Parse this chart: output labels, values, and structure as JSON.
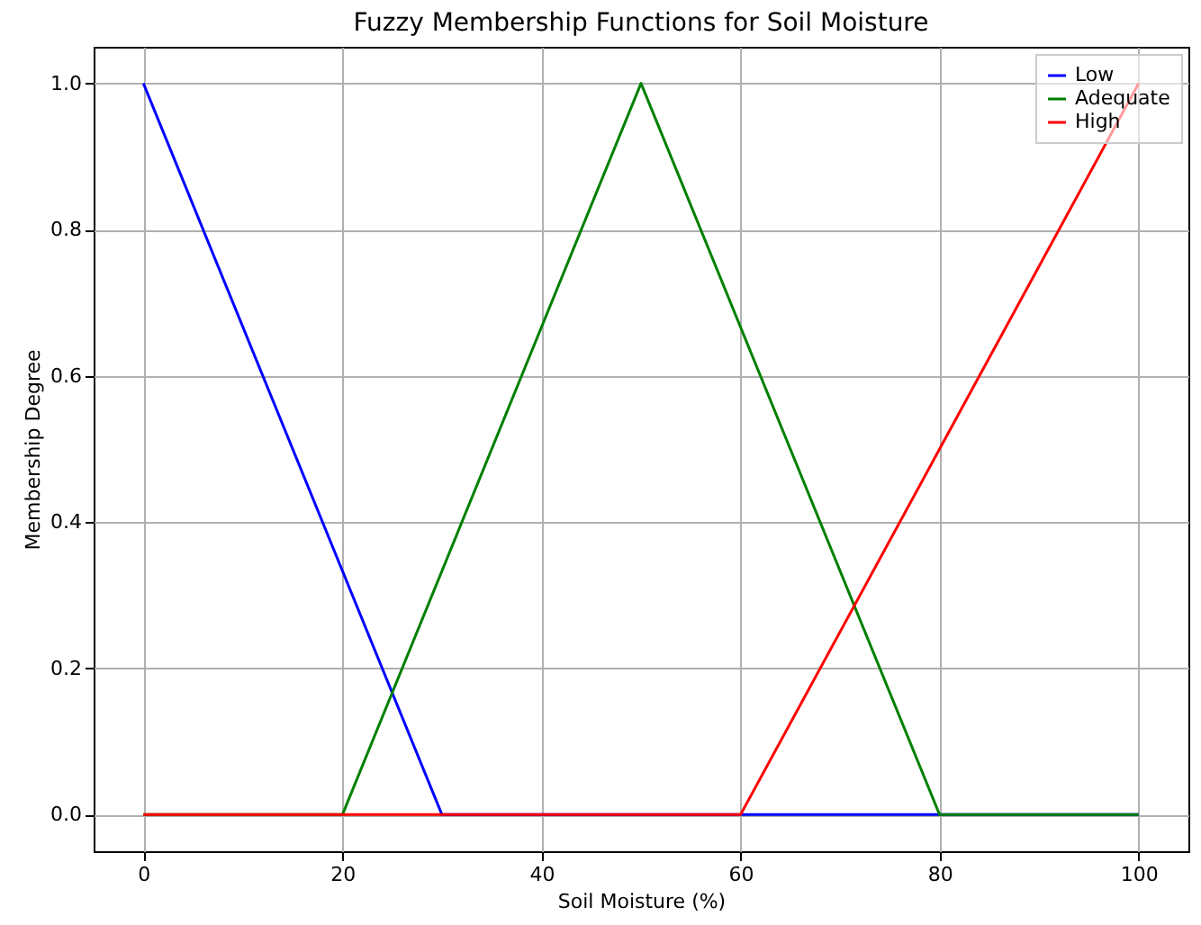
{
  "chart_data": {
    "type": "line",
    "title": "Fuzzy Membership Functions for Soil Moisture",
    "xlabel": "Soil Moisture (%)",
    "ylabel": "Membership Degree",
    "xlim": [
      -5,
      105
    ],
    "xticks": [
      0,
      20,
      40,
      60,
      80,
      100
    ],
    "ylim": [
      -0.05,
      1.05
    ],
    "yticks": [
      {
        "value": 0,
        "label": "0.0"
      },
      0.2,
      0.4,
      0.6,
      0.8,
      {
        "value": 1,
        "label": "1.0"
      }
    ],
    "grid": true,
    "legend": "top right",
    "marker": "none",
    "line_style": "solid",
    "series": [
      {
        "name": "Low",
        "color": "#0000ff",
        "x": [
          0,
          30,
          100
        ],
        "values": [
          1,
          0,
          0
        ]
      },
      {
        "name": "Adequate",
        "color": "#008000",
        "x": [
          0,
          20,
          50,
          80,
          100
        ],
        "values": [
          0,
          0,
          1,
          0,
          0
        ]
      },
      {
        "name": "High",
        "color": "#ff0000",
        "x": [
          0,
          60,
          100
        ],
        "values": [
          0,
          0,
          1
        ]
      }
    ]
  }
}
